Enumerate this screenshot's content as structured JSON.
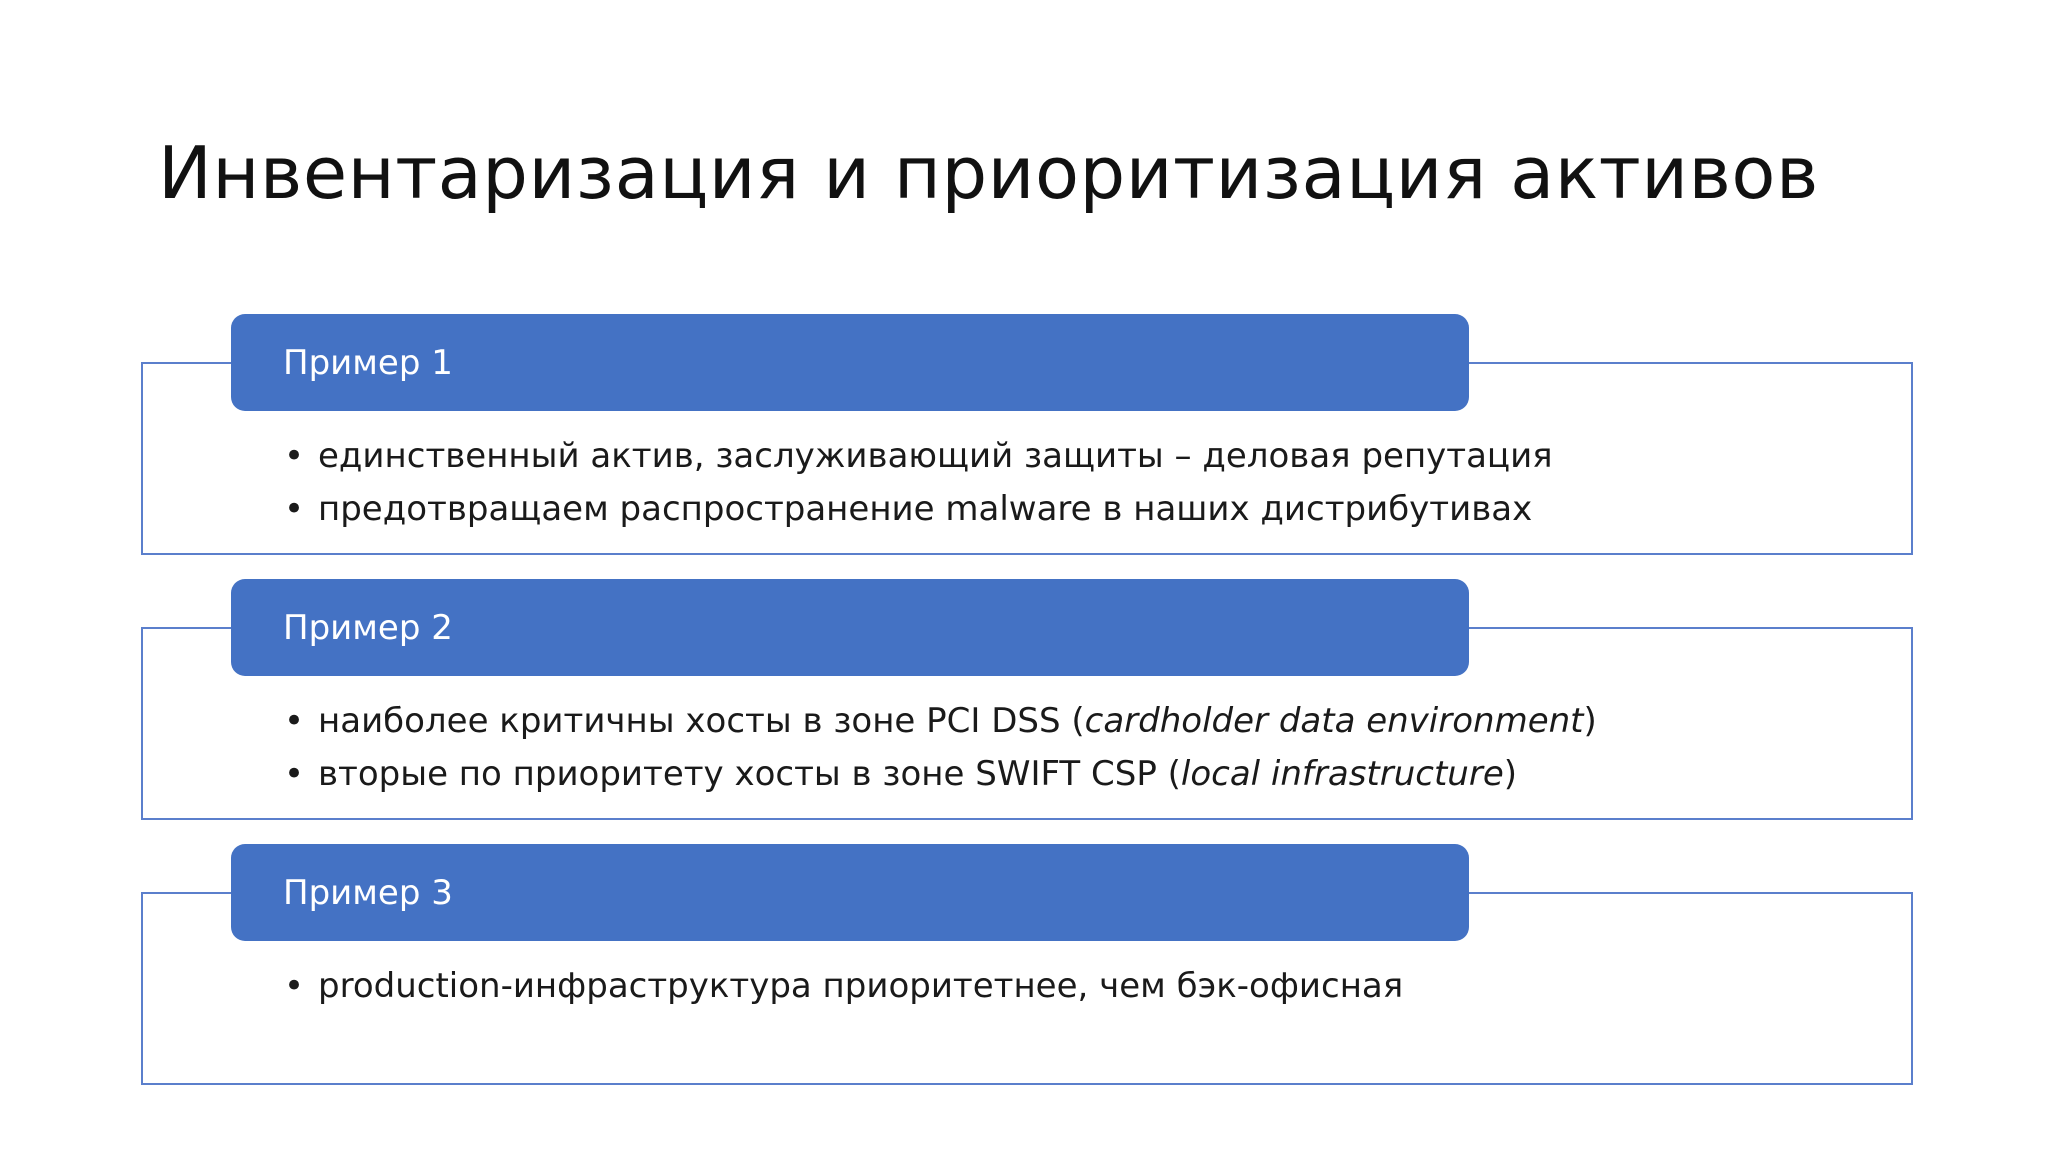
{
  "slide": {
    "title": "Инвентаризация и приоритизация активов"
  },
  "colors": {
    "header_fill": "#4472c4",
    "box_border": "#5b7fcc",
    "text": "#1a1a1a",
    "background": "#ffffff"
  },
  "blocks": [
    {
      "header": "Пример 1",
      "items": [
        {
          "text": "единственный актив, заслуживающий защиты – деловая репутация"
        },
        {
          "text": "предотвращаем распространение malware в наших дистрибутивах"
        }
      ]
    },
    {
      "header": "Пример 2",
      "items": [
        {
          "before": "наиболее критичны хосты в зоне PCI DSS (",
          "italic": "cardholder data environment",
          "after": ")"
        },
        {
          "before": "вторые по приоритету хосты в зоне SWIFT CSP (",
          "italic": "local infrastructure",
          "after": ")"
        }
      ]
    },
    {
      "header": "Пример 3",
      "items": [
        {
          "text": "production-инфраструктура приоритетнее, чем бэк-офисная"
        }
      ]
    }
  ]
}
